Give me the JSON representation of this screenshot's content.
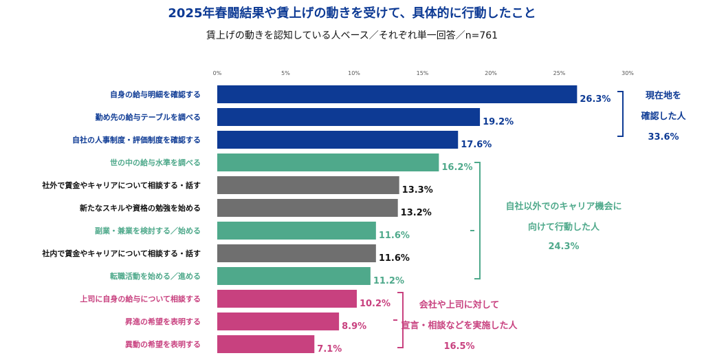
{
  "chart_data": {
    "type": "bar",
    "orientation": "horizontal",
    "title": "2025年春闘結果や賃上げの動きを受けて、具体的に行動したこと",
    "subtitle": "賃上げの動きを認知している人ベース／それぞれ単一回答／n=761",
    "xlim": [
      0,
      30
    ],
    "x_ticks": [
      "0%",
      "5%",
      "10%",
      "15%",
      "20%",
      "25%",
      "30%"
    ],
    "grid": false,
    "unit": "%",
    "categories": [
      "自身の給与明細を確認する",
      "勤め先の給与テーブルを調べる",
      "自社の人事制度・評価制度を確認する",
      "世の中の給与水準を調べる",
      "社外で賃金やキャリアについて相談する・話す",
      "新たなスキルや資格の勉強を始める",
      "副業・兼業を検討する／始める",
      "社内で賃金やキャリアについて相談する・話す",
      "転職活動を始める／進める",
      "上司に自身の給与について相談する",
      "昇進の希望を表明する",
      "異動の希望を表明する"
    ],
    "values": [
      26.3,
      19.2,
      17.6,
      16.2,
      13.3,
      13.2,
      11.6,
      11.6,
      11.2,
      10.2,
      8.9,
      7.1
    ],
    "value_labels": [
      "26.3%",
      "19.2%",
      "17.6%",
      "16.2%",
      "13.3%",
      "13.2%",
      "11.6%",
      "11.6%",
      "11.2%",
      "10.2%",
      "8.9%",
      "7.1%"
    ],
    "bar_groups": [
      "blue",
      "blue",
      "blue",
      "teal",
      "gray",
      "gray",
      "teal",
      "gray",
      "teal",
      "pink",
      "pink",
      "pink"
    ],
    "colors": {
      "blue": "#0d3a94",
      "teal": "#4fa98b",
      "gray": "#6f6f6f",
      "pink": "#c8417f",
      "title": "#0d3a94",
      "text": "#111111"
    },
    "group_annotations": [
      {
        "color": "blue",
        "lines": [
          "現在地を",
          "確認した人",
          "33.6%"
        ]
      },
      {
        "color": "teal",
        "lines": [
          "自社以外でのキャリア機会に",
          "向けて行動した人",
          "24.3%"
        ]
      },
      {
        "color": "pink",
        "lines": [
          "会社や上司に対して",
          "宣言・相談などを実施した人",
          "16.5%"
        ]
      }
    ]
  }
}
